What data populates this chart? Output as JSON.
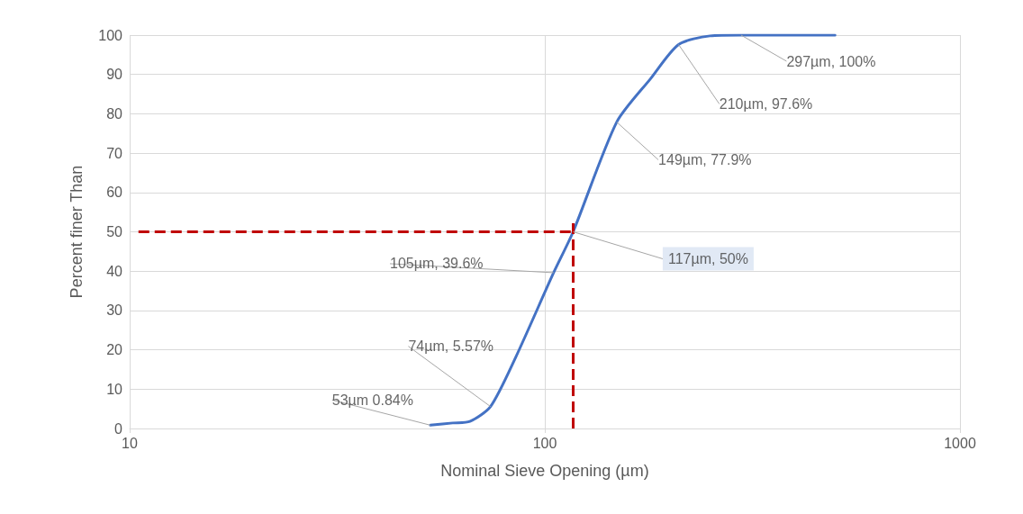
{
  "chart_data": {
    "type": "line",
    "xlabel": "Nominal Sieve Opening (µm)",
    "ylabel": "Percent finer Than",
    "log": "x",
    "xlim": [
      10,
      1000
    ],
    "xticks": [
      10,
      100,
      1000
    ],
    "ylim": [
      0,
      100
    ],
    "yticks": [
      0,
      10,
      20,
      30,
      40,
      50,
      60,
      70,
      80,
      90,
      100
    ],
    "grid": true,
    "marker": "none",
    "line_style": "solid",
    "series": [
      {
        "color": "#4472c4",
        "x": [
          53,
          60,
          66,
          74,
          85,
          105,
          117,
          149,
          180,
          210,
          250,
          297,
          500
        ],
        "values": [
          0.84,
          1.4,
          1.8,
          5.57,
          18,
          39.6,
          50,
          77.9,
          89,
          97.6,
          99.8,
          100,
          100
        ]
      }
    ],
    "ref_lines": [
      {
        "axis": "y",
        "value": 50,
        "color": "#c00000",
        "line_style": "dashed"
      },
      {
        "axis": "x",
        "value": 117,
        "color": "#c00000",
        "line_style": "dashed"
      }
    ],
    "annotations": [
      {
        "text": "53µm 0.84%",
        "x": 53,
        "y": 0.84
      },
      {
        "text": "74µm, 5.57%",
        "x": 74,
        "y": 5.57
      },
      {
        "text": "105µm, 39.6%",
        "x": 105,
        "y": 39.6
      },
      {
        "text": "117µm, 50%",
        "x": 117,
        "y": 50
      },
      {
        "text": "149µm, 77.9%",
        "x": 149,
        "y": 77.9
      },
      {
        "text": "210µm, 97.6%",
        "x": 210,
        "y": 97.6
      },
      {
        "text": "297µm, 100%",
        "x": 297,
        "y": 100
      }
    ]
  }
}
